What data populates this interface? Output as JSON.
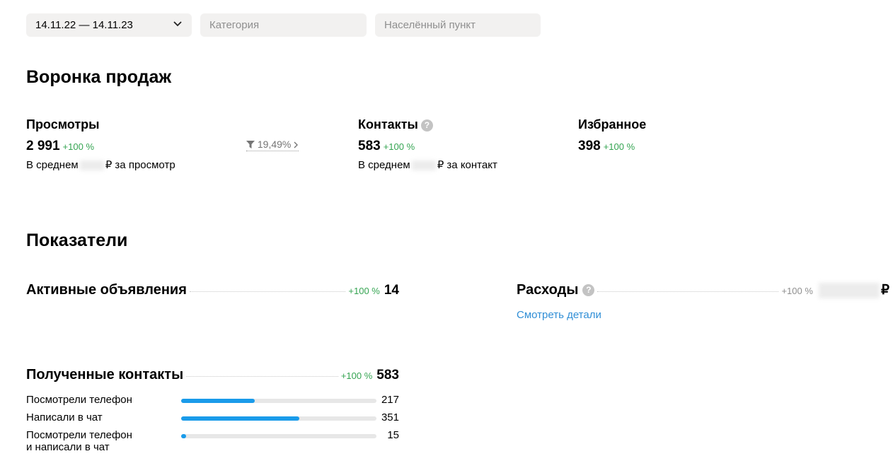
{
  "filters": {
    "date_range": "14.11.22 — 14.11.23",
    "category_placeholder": "Категория",
    "city_placeholder": "Населённый пункт"
  },
  "funnel": {
    "title": "Воронка продаж",
    "views": {
      "label": "Просмотры",
      "value": "2 991",
      "change": "+100 %",
      "avg_prefix": "В среднем",
      "avg_suffix": "₽ за просмотр"
    },
    "conversion": "19,49%",
    "contacts": {
      "label": "Контакты",
      "value": "583",
      "change": "+100 %",
      "avg_prefix": "В среднем",
      "avg_suffix": "₽ за контакт"
    },
    "favorites": {
      "label": "Избранное",
      "value": "398",
      "change": "+100 %"
    }
  },
  "indicators": {
    "title": "Показатели",
    "active_ads": {
      "label": "Активные объявления",
      "change": "+100 %",
      "value": "14"
    },
    "expenses": {
      "label": "Расходы",
      "change": "+100 %",
      "currency": "₽",
      "details_link": "Смотреть детали"
    },
    "contacts_received": {
      "label": "Полученные контакты",
      "change": "+100 %",
      "value": "583",
      "rows": [
        {
          "label": "Посмотрели телефон",
          "value": "217",
          "fraction": 0.375
        },
        {
          "label": "Написали в чат",
          "value": "351",
          "fraction": 0.605
        },
        {
          "label": "Посмотрели телефон\nи написали в чат",
          "value": "15",
          "fraction": 0.026
        }
      ]
    }
  },
  "colors": {
    "positive": "#35a452",
    "accent_bar": "#1a9bea",
    "link": "#2f8ed6",
    "field_bg": "#f2f1f0"
  }
}
